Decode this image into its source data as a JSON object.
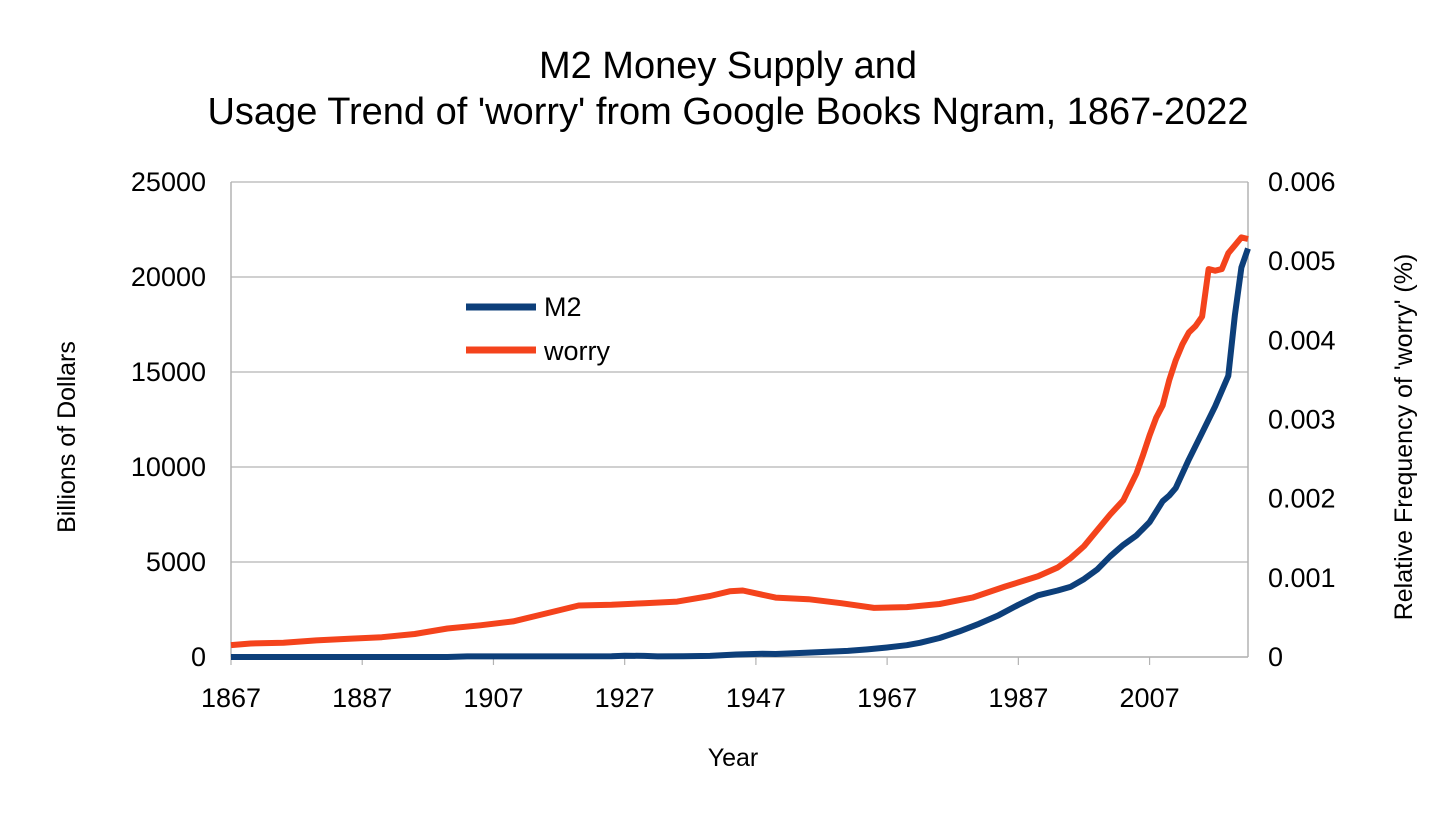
{
  "chart_data": {
    "type": "line",
    "title_line1": "M2 Money Supply and",
    "title_line2": "Usage Trend of 'worry' from Google Books Ngram, 1867-2022",
    "xlabel": "Year",
    "ylabel_left": "Billions of Dollars",
    "ylabel_right": "Relative Frequency of 'worry' (%)",
    "xlim": [
      1867,
      2022
    ],
    "ylim_left": [
      0,
      25000
    ],
    "ylim_right": [
      0,
      0.006
    ],
    "x_ticks": [
      "1867",
      "1887",
      "1907",
      "1927",
      "1947",
      "1967",
      "1987",
      "2007"
    ],
    "y_left_ticks": [
      "0",
      "5000",
      "10000",
      "15000",
      "20000",
      "25000"
    ],
    "y_right_ticks": [
      "0",
      "0.001",
      "0.002",
      "0.003",
      "0.004",
      "0.005",
      "0.006"
    ],
    "grid": true,
    "legend_position": "upper-left-center",
    "series": [
      {
        "name": "M2",
        "axis": "left",
        "color": "#0d3f7a",
        "x": [
          1867,
          1880,
          1900,
          1903,
          1925,
          1927,
          1930,
          1932,
          1936,
          1940,
          1944,
          1948,
          1950,
          1955,
          1958,
          1961,
          1964,
          1967,
          1970,
          1972,
          1975,
          1978,
          1981,
          1984,
          1987,
          1990,
          1993,
          1995,
          1997,
          1999,
          2001,
          2003,
          2005,
          2007,
          2009,
          2010,
          2011,
          2013,
          2015,
          2017,
          2019,
          2020,
          2021,
          2022
        ],
        "values": [
          0,
          0,
          0,
          30,
          40,
          70,
          60,
          30,
          40,
          60,
          130,
          170,
          160,
          230,
          280,
          320,
          400,
          500,
          620,
          750,
          1000,
          1350,
          1750,
          2200,
          2750,
          3250,
          3500,
          3700,
          4100,
          4600,
          5300,
          5900,
          6400,
          7100,
          8200,
          8500,
          8900,
          10400,
          11800,
          13200,
          14800,
          18000,
          20500,
          21500
        ]
      },
      {
        "name": "worry",
        "axis": "right",
        "color": "#f4431c",
        "x": [
          1867,
          1870,
          1875,
          1880,
          1885,
          1890,
          1895,
          1900,
          1905,
          1910,
          1915,
          1920,
          1925,
          1930,
          1935,
          1940,
          1943,
          1945,
          1950,
          1955,
          1960,
          1965,
          1970,
          1975,
          1980,
          1985,
          1990,
          1993,
          1995,
          1997,
          1999,
          2001,
          2003,
          2005,
          2006,
          2007,
          2008,
          2009,
          2010,
          2011,
          2012,
          2013,
          2014,
          2015,
          2016,
          2017,
          2018,
          2019,
          2020,
          2021,
          2022
        ],
        "values": [
          0.00015,
          0.00017,
          0.00018,
          0.00021,
          0.00023,
          0.00025,
          0.00029,
          0.00036,
          0.0004,
          0.00045,
          0.00055,
          0.00065,
          0.00066,
          0.00068,
          0.0007,
          0.00077,
          0.00083,
          0.00084,
          0.00075,
          0.00073,
          0.00068,
          0.00062,
          0.00063,
          0.00067,
          0.00075,
          0.00089,
          0.00102,
          0.00113,
          0.00125,
          0.0014,
          0.0016,
          0.0018,
          0.00198,
          0.00232,
          0.00255,
          0.0028,
          0.00302,
          0.00318,
          0.0035,
          0.00375,
          0.00395,
          0.0041,
          0.00418,
          0.0043,
          0.0049,
          0.00488,
          0.0049,
          0.0051,
          0.0052,
          0.0053,
          0.00528
        ]
      }
    ]
  }
}
